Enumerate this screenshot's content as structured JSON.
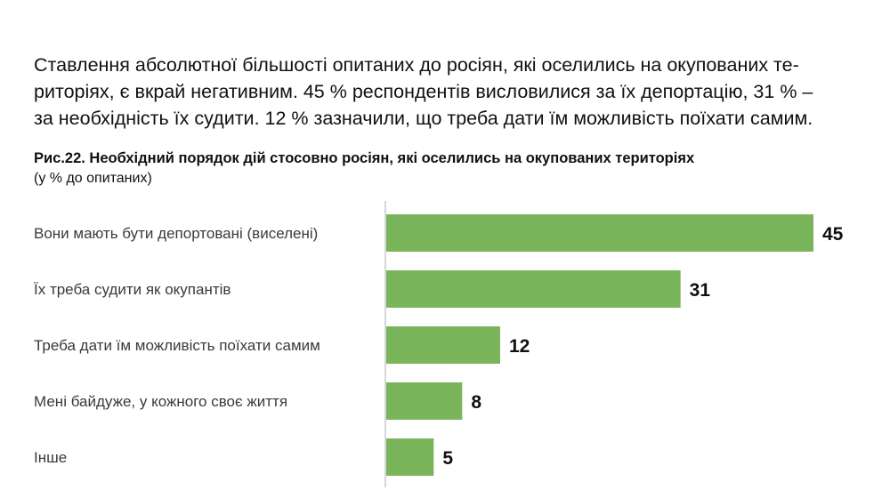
{
  "intro": {
    "line1": "Ставлення абсолютної більшості опитаних до росіян, які оселились на окупованих те-",
    "line2": "риторіях, є вкрай негативним. 45 % респондентів висловилися за їх депортацію, 31 % –",
    "line3": "за необхідність їх судити. 12 % зазначили, що треба дати їм можливість поїхати самим."
  },
  "chart_data": {
    "type": "bar",
    "orientation": "horizontal",
    "title": "Рис.22. Необхідний порядок дій стосовно росіян, які оселились на окупованих територіях",
    "subtitle": "(у % до опитаних)",
    "categories": [
      "Вони мають бути депортовані (виселені)",
      "Їх треба судити як окупантів",
      "Треба дати їм можливість поїхати самим",
      "Мені байдуже, у кожного своє життя",
      "Інше"
    ],
    "values": [
      45,
      31,
      12,
      8,
      5
    ],
    "xlim": [
      0,
      45
    ],
    "bar_color": "#7ab55c",
    "grid": false
  }
}
